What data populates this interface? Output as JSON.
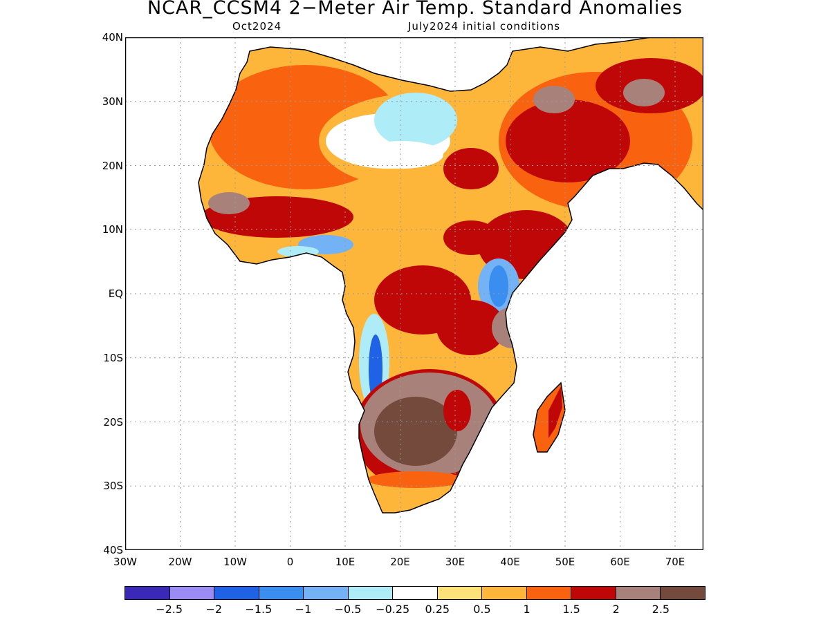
{
  "header": {
    "title": "NCAR_CCSM4 2−Meter Air Temp. Standard Anomalies",
    "valid_month": "Oct2024",
    "init": "July2024 initial conditions"
  },
  "map": {
    "lat_labels": [
      "40N",
      "30N",
      "20N",
      "10N",
      "EQ",
      "10S",
      "20S",
      "30S",
      "40S"
    ],
    "lon_labels": [
      "30W",
      "20W",
      "10W",
      "0",
      "10E",
      "20E",
      "30E",
      "40E",
      "50E",
      "60E",
      "70E"
    ],
    "land_color": "#ffffff",
    "anomaly_regions": [
      {
        "region": "Sahara interior",
        "level": "-0.5"
      },
      {
        "region": "Gulf of Guinea coast",
        "level": "-1"
      },
      {
        "region": "Angola coast",
        "level": "-1.5"
      },
      {
        "region": "West Africa Sahel",
        "level": "2"
      },
      {
        "region": "Arabian Peninsula",
        "level": "2"
      },
      {
        "region": "Southern Africa interior",
        "level": "2.5"
      },
      {
        "region": "South Africa southern coast",
        "level": "0.5"
      },
      {
        "region": "East Africa Horn",
        "level": "2"
      }
    ]
  },
  "colorbar": {
    "colors": [
      "#3a28b8",
      "#9b8cf5",
      "#1f62e6",
      "#3a8ef0",
      "#73b2f5",
      "#aeedf7",
      "#ffffff",
      "#fde27a",
      "#fdb53a",
      "#f9620e",
      "#c00707",
      "#a8827a",
      "#744a3c"
    ],
    "labels": [
      "−2.5",
      "−2",
      "−1.5",
      "−1",
      "−0.5",
      "−0.25",
      "0.25",
      "0.5",
      "1",
      "1.5",
      "2",
      "2.5"
    ]
  }
}
